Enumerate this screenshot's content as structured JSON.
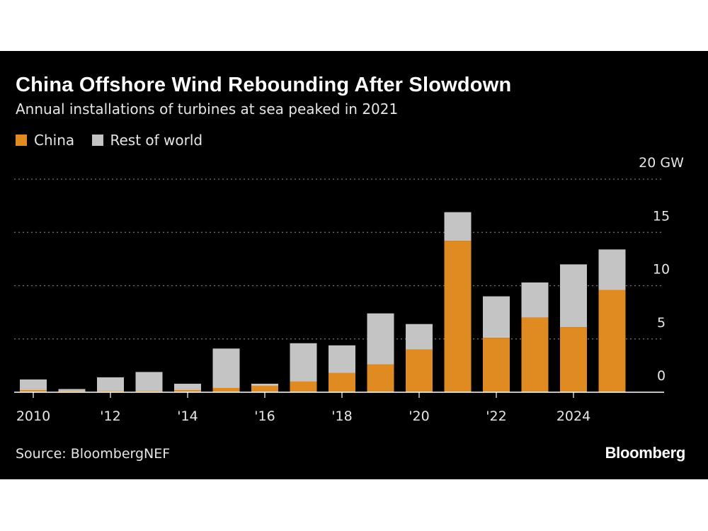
{
  "colors": {
    "background": "#000000",
    "china": "#e08a22",
    "rest_of_world": "#c4c4c4",
    "grid": "#777777",
    "text": "#e6e6e6"
  },
  "header": {
    "title": "China Offshore Wind Rebounding After Slowdown",
    "subtitle": "Annual installations of turbines at sea peaked in 2021"
  },
  "legend": {
    "china_label": "China",
    "rest_label": "Rest of world"
  },
  "footer": {
    "source": "Source: BloombergNEF",
    "logo": "Bloomberg"
  },
  "chart_data": {
    "type": "bar",
    "stacked": true,
    "x": [
      2010,
      2011,
      2012,
      2013,
      2014,
      2015,
      2016,
      2017,
      2018,
      2019,
      2020,
      2021,
      2022,
      2023,
      2024,
      2025
    ],
    "series": [
      {
        "name": "China",
        "values": [
          0.2,
          0.1,
          0.1,
          0.1,
          0.2,
          0.4,
          0.6,
          1.0,
          1.8,
          2.6,
          4.0,
          14.2,
          5.1,
          7.0,
          6.1,
          9.6
        ]
      },
      {
        "name": "Rest of world",
        "values": [
          1.0,
          0.2,
          1.3,
          1.8,
          0.6,
          3.7,
          0.2,
          3.6,
          2.6,
          4.8,
          2.4,
          2.7,
          3.9,
          3.3,
          5.9,
          3.8
        ]
      }
    ],
    "ylim": [
      0,
      20
    ],
    "yticks": [
      {
        "value": 0,
        "label": "0"
      },
      {
        "value": 5,
        "label": "5"
      },
      {
        "value": 10,
        "label": "10"
      },
      {
        "value": 15,
        "label": "15"
      },
      {
        "value": 20,
        "label": "20 GW"
      }
    ],
    "xticks": [
      {
        "value": 2010,
        "label": "2010"
      },
      {
        "value": 2012,
        "label": "'12"
      },
      {
        "value": 2014,
        "label": "'14"
      },
      {
        "value": 2016,
        "label": "'16"
      },
      {
        "value": 2018,
        "label": "'18"
      },
      {
        "value": 2020,
        "label": "'20"
      },
      {
        "value": 2022,
        "label": "'22"
      },
      {
        "value": 2024,
        "label": "2024"
      }
    ],
    "grid": true,
    "legend_position": "top-left"
  }
}
